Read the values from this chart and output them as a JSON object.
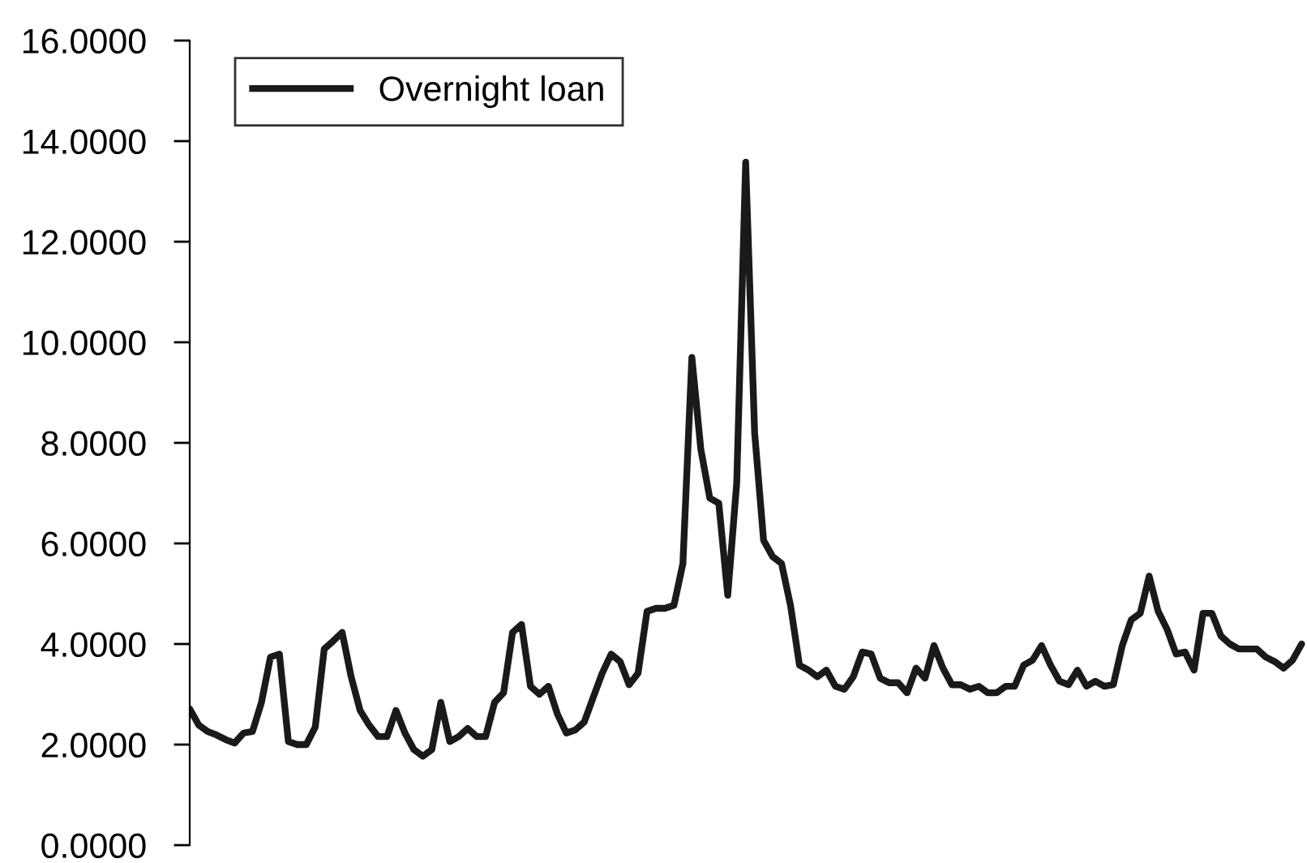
{
  "chart_data": {
    "type": "line",
    "legend": "top left",
    "grid": false,
    "tick_labels": "y",
    "ylim": [
      0,
      16
    ],
    "yticks": [
      {
        "value": 0,
        "label": "0.0000"
      },
      {
        "value": 2,
        "label": "2.0000"
      },
      {
        "value": 4,
        "label": "4.0000"
      },
      {
        "value": 6,
        "label": "6.0000"
      },
      {
        "value": 8,
        "label": "8.0000"
      },
      {
        "value": 10,
        "label": "10.0000"
      },
      {
        "value": 12,
        "label": "12.0000"
      },
      {
        "value": 14,
        "label": "14.0000"
      },
      {
        "value": 16,
        "label": "16.0000"
      }
    ],
    "categories": [
      null,
      null,
      null,
      null,
      null,
      null,
      null,
      null,
      null,
      null,
      null,
      null,
      null,
      null,
      null,
      null,
      null,
      null,
      null,
      null,
      null,
      null,
      null,
      null,
      null,
      null,
      null,
      null,
      null,
      null,
      null,
      null,
      null,
      null,
      null,
      null,
      null,
      null,
      null,
      null,
      null,
      null,
      null,
      null,
      null,
      null,
      null,
      null,
      null,
      null,
      null,
      null,
      null,
      null,
      null,
      null,
      null,
      null,
      null,
      null,
      null,
      null,
      null,
      null,
      null,
      null,
      null,
      null,
      null,
      null,
      null,
      null,
      null,
      null,
      null,
      null,
      null,
      null,
      null,
      null,
      null,
      null,
      null,
      null,
      null,
      null,
      null,
      null,
      null,
      null,
      null,
      null,
      null,
      null,
      null,
      null,
      null,
      null,
      null,
      null,
      null,
      null,
      null,
      null,
      null,
      null,
      null,
      null,
      null,
      null,
      null,
      null,
      null,
      null,
      null,
      null,
      null,
      null,
      null,
      null,
      null,
      null,
      null,
      null,
      null
    ],
    "series": [
      {
        "name": "Overnight loan",
        "color": "#1a1a1a",
        "values": [
          2.71,
          2.39,
          2.26,
          2.19,
          2.1,
          2.03,
          2.23,
          2.26,
          2.84,
          3.74,
          3.8,
          2.06,
          2.0,
          2.0,
          2.35,
          3.9,
          4.06,
          4.23,
          3.35,
          2.68,
          2.39,
          2.16,
          2.16,
          2.68,
          2.23,
          1.9,
          1.77,
          1.9,
          2.84,
          2.06,
          2.16,
          2.32,
          2.16,
          2.16,
          2.84,
          3.03,
          4.23,
          4.39,
          3.16,
          3.0,
          3.16,
          2.61,
          2.23,
          2.29,
          2.45,
          2.94,
          3.42,
          3.8,
          3.65,
          3.19,
          3.42,
          4.65,
          4.71,
          4.71,
          4.77,
          5.6,
          9.7,
          7.87,
          6.9,
          6.8,
          4.97,
          7.2,
          13.58,
          8.2,
          6.06,
          5.74,
          5.6,
          4.77,
          3.58,
          3.48,
          3.35,
          3.48,
          3.16,
          3.1,
          3.35,
          3.84,
          3.8,
          3.32,
          3.23,
          3.23,
          3.03,
          3.52,
          3.32,
          3.97,
          3.52,
          3.19,
          3.19,
          3.1,
          3.16,
          3.03,
          3.03,
          3.16,
          3.16,
          3.58,
          3.68,
          3.97,
          3.58,
          3.26,
          3.19,
          3.48,
          3.16,
          3.26,
          3.16,
          3.19,
          3.97,
          4.48,
          4.61,
          5.35,
          4.65,
          4.29,
          3.8,
          3.84,
          3.48,
          4.61,
          4.61,
          4.16,
          4.0,
          3.9,
          3.9,
          3.9,
          3.74,
          3.65,
          3.52,
          3.68,
          4.0
        ]
      }
    ]
  }
}
